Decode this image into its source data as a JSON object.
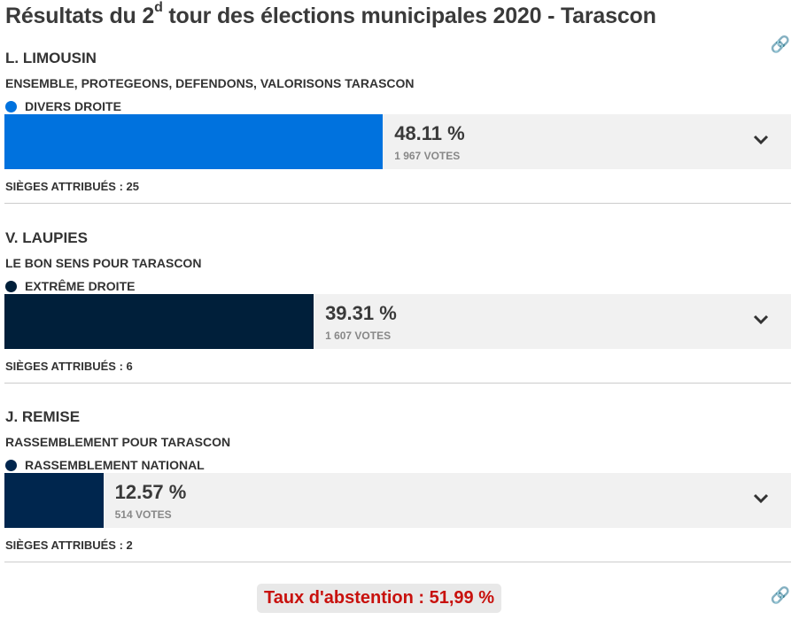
{
  "title": {
    "pre": "Résultats du 2",
    "sup": "d",
    "post": " tour des élections municipales 2020 - Tarascon"
  },
  "link_icon": "link-icon",
  "candidates": [
    {
      "name": "L. LIMOUSIN",
      "list": "ENSEMBLE, PROTEGEONS, DEFENDONS, VALORISONS TARASCON",
      "party": "DIVERS DROITE",
      "color": "#0072de",
      "percent": 48.11,
      "percent_label": "48.11 %",
      "votes": "1 967 VOTES",
      "seats": "SIÈGES ATTRIBUÉS : 25"
    },
    {
      "name": "V. LAUPIES",
      "list": "LE BON SENS POUR TARASCON",
      "party": "EXTRÊME DROITE",
      "color": "#001f3a",
      "percent": 39.31,
      "percent_label": "39.31 %",
      "votes": "1 607 VOTES",
      "seats": "SIÈGES ATTRIBUÉS : 6"
    },
    {
      "name": "J. REMISE",
      "list": "RASSEMBLEMENT POUR TARASCON",
      "party": "RASSEMBLEMENT NATIONAL",
      "color": "#00264e",
      "percent": 12.57,
      "percent_label": "12.57 %",
      "votes": "514 VOTES",
      "seats": "SIÈGES ATTRIBUÉS : 2"
    }
  ],
  "abstention": "Taux d'abstention : 51,99 %"
}
